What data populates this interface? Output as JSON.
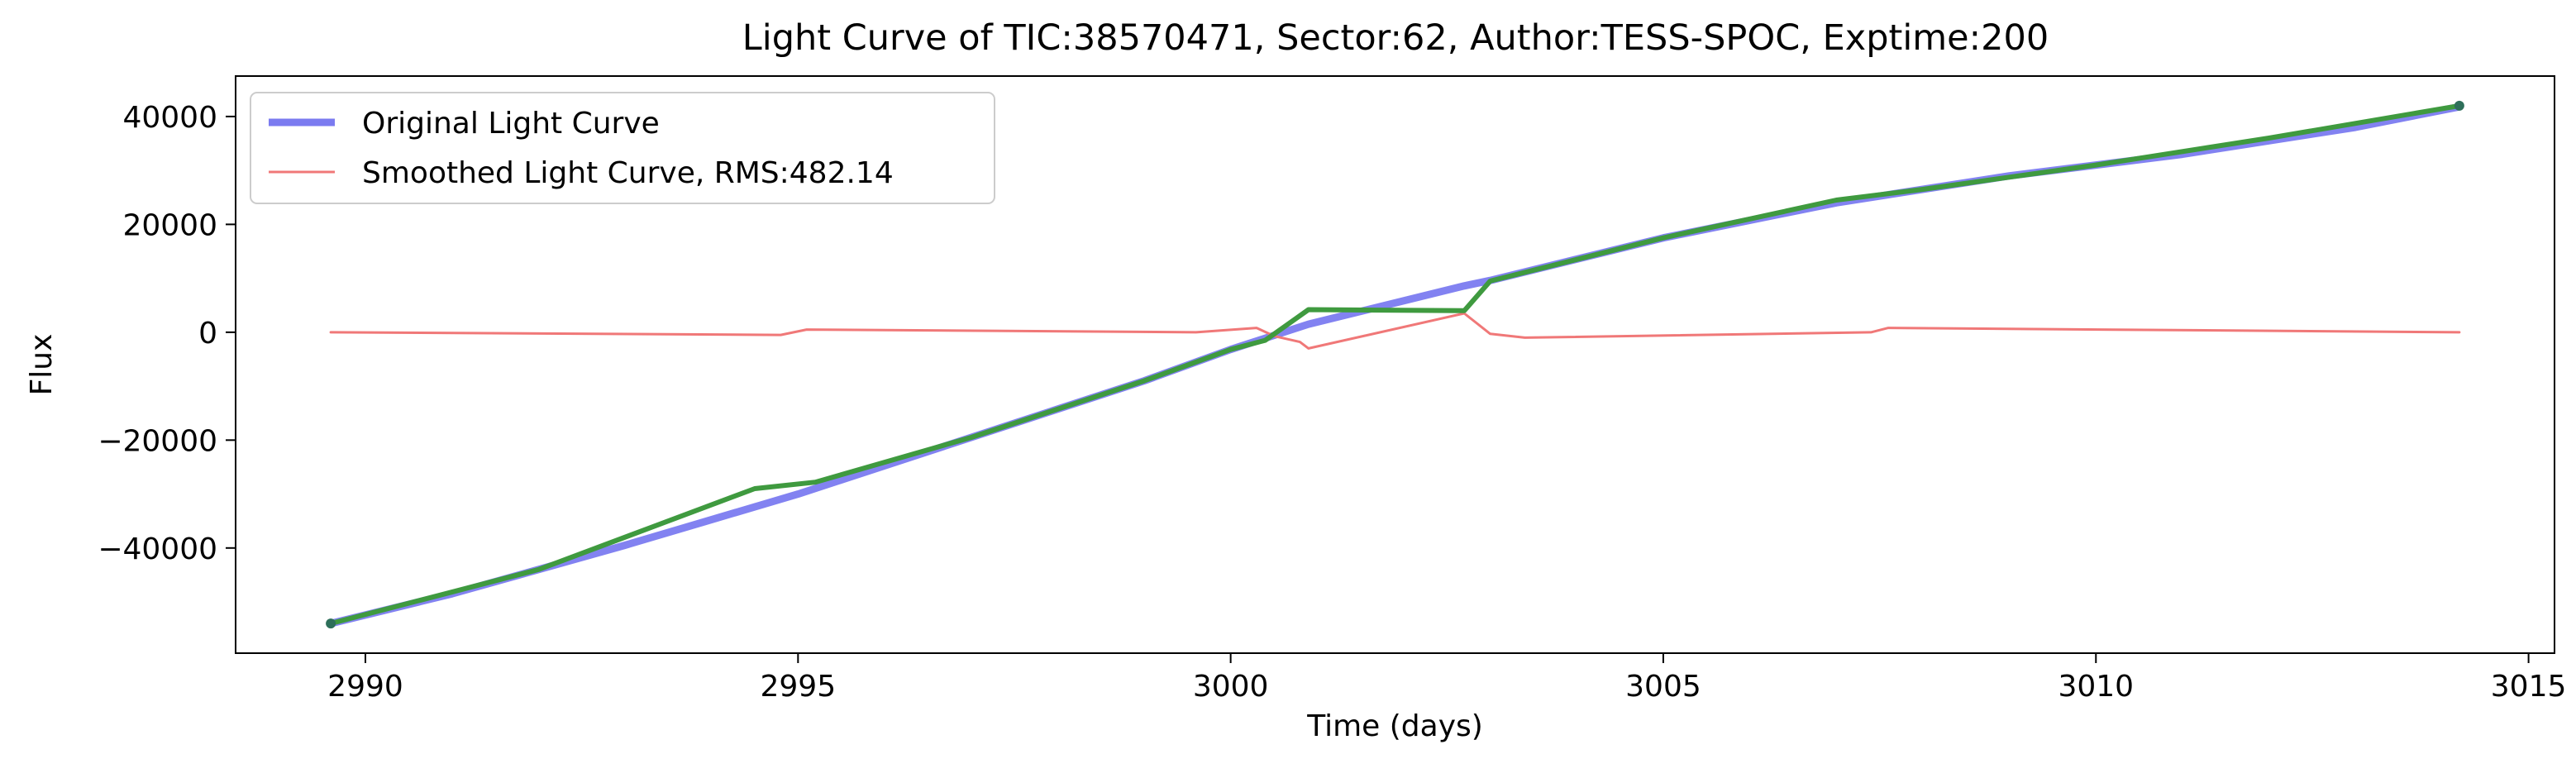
{
  "chart_data": {
    "type": "line",
    "title": "Light Curve of TIC:38570471, Sector:62, Author:TESS-SPOC, Exptime:200",
    "xlabel": "Time (days)",
    "ylabel": "Flux",
    "xlim": [
      2988.5,
      3015.3
    ],
    "ylim": [
      -59500,
      47500
    ],
    "xticks": [
      2990,
      2995,
      3000,
      3005,
      3010,
      3015
    ],
    "xtick_labels": [
      "2990",
      "2995",
      "3000",
      "3005",
      "3010",
      "3015"
    ],
    "yticks": [
      -40000,
      -20000,
      0,
      20000,
      40000
    ],
    "ytick_labels": [
      "−40000",
      "−20000",
      "0",
      "20000",
      "40000"
    ],
    "grid": false,
    "legend_position": "upper-left",
    "series": [
      {
        "name": "Original Light Curve",
        "color": "#7b7bf0",
        "x": [
          2989.6,
          2991.0,
          2993.0,
          2995.0,
          2997.0,
          2999.0,
          3000.0,
          3000.9,
          3002.7,
          3003.0,
          3005.0,
          3007.0,
          3009.0,
          3011.0,
          3013.0,
          3014.2
        ],
        "y": [
          -54000,
          -48500,
          -39500,
          -30000,
          -19500,
          -9000,
          -3200,
          1500,
          8600,
          9600,
          17500,
          24000,
          29000,
          33000,
          38000,
          41800
        ]
      },
      {
        "name": "Smoothed Light Curve, RMS:482.14",
        "color": "#f07878",
        "x": [
          2989.6,
          2994.8,
          2995.1,
          2999.6,
          3000.3,
          3000.5,
          3000.8,
          3000.9,
          3002.7,
          3003.0,
          3003.4,
          3007.4,
          3007.6,
          3014.2
        ],
        "y": [
          0,
          -500,
          500,
          0,
          800,
          -700,
          -1800,
          -3000,
          3500,
          -300,
          -1000,
          0,
          800,
          0
        ]
      },
      {
        "name": "",
        "color": "#3f9a3f",
        "x": [
          2989.6,
          2992.0,
          2994.5,
          2995.2,
          2997.0,
          2999.0,
          3000.0,
          3000.4,
          3000.9,
          3002.7,
          3003.0,
          3003.5,
          3005.0,
          3007.0,
          3008.0,
          3010.0,
          3012.0,
          3014.2
        ],
        "y": [
          -54000,
          -44000,
          -29000,
          -27800,
          -19500,
          -9000,
          -3200,
          -1500,
          4200,
          4000,
          9500,
          11500,
          17500,
          24500,
          26500,
          31000,
          36000,
          42000
        ]
      }
    ]
  }
}
